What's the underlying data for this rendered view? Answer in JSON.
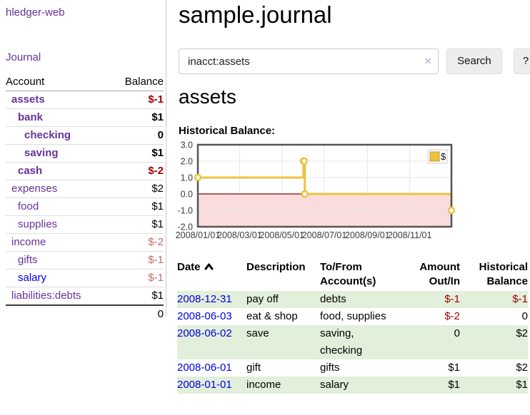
{
  "brand": "hledger-web",
  "nav": {
    "journal": "Journal"
  },
  "sidebar": {
    "headers": {
      "account": "Account",
      "balance": "Balance"
    },
    "accounts": [
      {
        "name": "assets",
        "balance": "$-1",
        "depth": 1,
        "bold": true,
        "balance_style": "neg-strong",
        "link_style": "purple"
      },
      {
        "name": "bank",
        "balance": "$1",
        "depth": 2,
        "bold": true,
        "balance_style": "pos",
        "link_style": "purple"
      },
      {
        "name": "checking",
        "balance": "0",
        "depth": 3,
        "bold": true,
        "balance_style": "pos",
        "link_style": "purple"
      },
      {
        "name": "saving",
        "balance": "$1",
        "depth": 3,
        "bold": true,
        "balance_style": "pos",
        "link_style": "purple"
      },
      {
        "name": "cash",
        "balance": "$-2",
        "depth": 2,
        "bold": true,
        "balance_style": "neg-strong",
        "link_style": "purple"
      },
      {
        "name": "expenses",
        "balance": "$2",
        "depth": 1,
        "bold": false,
        "balance_style": "pos",
        "link_style": "purple"
      },
      {
        "name": "food",
        "balance": "$1",
        "depth": 2,
        "bold": false,
        "balance_style": "pos",
        "link_style": "purple"
      },
      {
        "name": "supplies",
        "balance": "$1",
        "depth": 2,
        "bold": false,
        "balance_style": "pos",
        "link_style": "purple"
      },
      {
        "name": "income",
        "balance": "$-2",
        "depth": 1,
        "bold": false,
        "balance_style": "neg-soft",
        "link_style": "purple"
      },
      {
        "name": "gifts",
        "balance": "$-1",
        "depth": 2,
        "bold": false,
        "balance_style": "neg-soft",
        "link_style": "purple"
      },
      {
        "name": "salary",
        "balance": "$-1",
        "depth": 2,
        "bold": false,
        "balance_style": "neg-soft",
        "link_style": "blue"
      },
      {
        "name": "liabilities:debts",
        "balance": "$1",
        "depth": 1,
        "bold": false,
        "balance_style": "pos",
        "link_style": "purple"
      }
    ],
    "total": "0"
  },
  "main": {
    "title": "sample.journal",
    "search": {
      "value": "inacct:assets",
      "clear_label": "×",
      "button_label": "Search",
      "help_label": "?"
    },
    "account_heading": "assets",
    "section_label": "Historical Balance:"
  },
  "chart_data": {
    "type": "line",
    "step": true,
    "title": "Historical Balance:",
    "series": [
      {
        "name": "$",
        "color": "#edc240",
        "points": [
          [
            "2008-01-01",
            1
          ],
          [
            "2008-06-01",
            2
          ],
          [
            "2008-06-02",
            2
          ],
          [
            "2008-06-03",
            0
          ],
          [
            "2008-12-31",
            -1
          ]
        ]
      }
    ],
    "x_start": "2008-01-01",
    "x_end": "2008-12-31",
    "x_tick_dates": [
      "2008-01-01",
      "2008-03-01",
      "2008-05-01",
      "2008-07-01",
      "2008-09-01",
      "2008-11-01"
    ],
    "x_tick_labels": [
      "2008/01/01",
      "2008/03/01",
      "2008/05/01",
      "2008/07/01",
      "2008/09/01",
      "2008/11/01"
    ],
    "y_ticks": [
      "3.0",
      "2.0",
      "1.0",
      "0.0",
      "-1.0",
      "-2.0"
    ],
    "ylim": [
      -2,
      3
    ],
    "grid": true,
    "legend": {
      "label": "$",
      "position": "top-right"
    },
    "negative_fill": "#fbdcdc",
    "zero_line_color": "#8b0000",
    "border_color": "#545454",
    "grid_color": "#e7e7e7"
  },
  "register": {
    "headers": {
      "date": "Date",
      "description": "Description",
      "accounts": "To/From Account(s)",
      "amount": "Amount Out/In",
      "balance": "Historical Balance"
    },
    "rows": [
      {
        "date": "2008-12-31",
        "description": "pay off",
        "accounts": "debts",
        "amount": "$-1",
        "balance": "$-1",
        "amount_neg": true,
        "balance_neg": true
      },
      {
        "date": "2008-06-03",
        "description": "eat & shop",
        "accounts": "food, supplies",
        "amount": "$-2",
        "balance": "0",
        "amount_neg": true,
        "balance_neg": false
      },
      {
        "date": "2008-06-02",
        "description": "save",
        "accounts": "saving, checking",
        "amount": "0",
        "balance": "$2",
        "amount_neg": false,
        "balance_neg": false
      },
      {
        "date": "2008-06-01",
        "description": "gift",
        "accounts": "gifts",
        "amount": "$1",
        "balance": "$2",
        "amount_neg": false,
        "balance_neg": false
      },
      {
        "date": "2008-01-01",
        "description": "income",
        "accounts": "salary",
        "amount": "$1",
        "balance": "$1",
        "amount_neg": false,
        "balance_neg": false
      }
    ]
  },
  "colors": {
    "link_purple": "#663399",
    "link_blue": "#0000e6",
    "negative_strong": "#a40000",
    "negative_soft": "#c26b6b",
    "row_green": "#e2efda",
    "chart_line": "#edc240"
  }
}
